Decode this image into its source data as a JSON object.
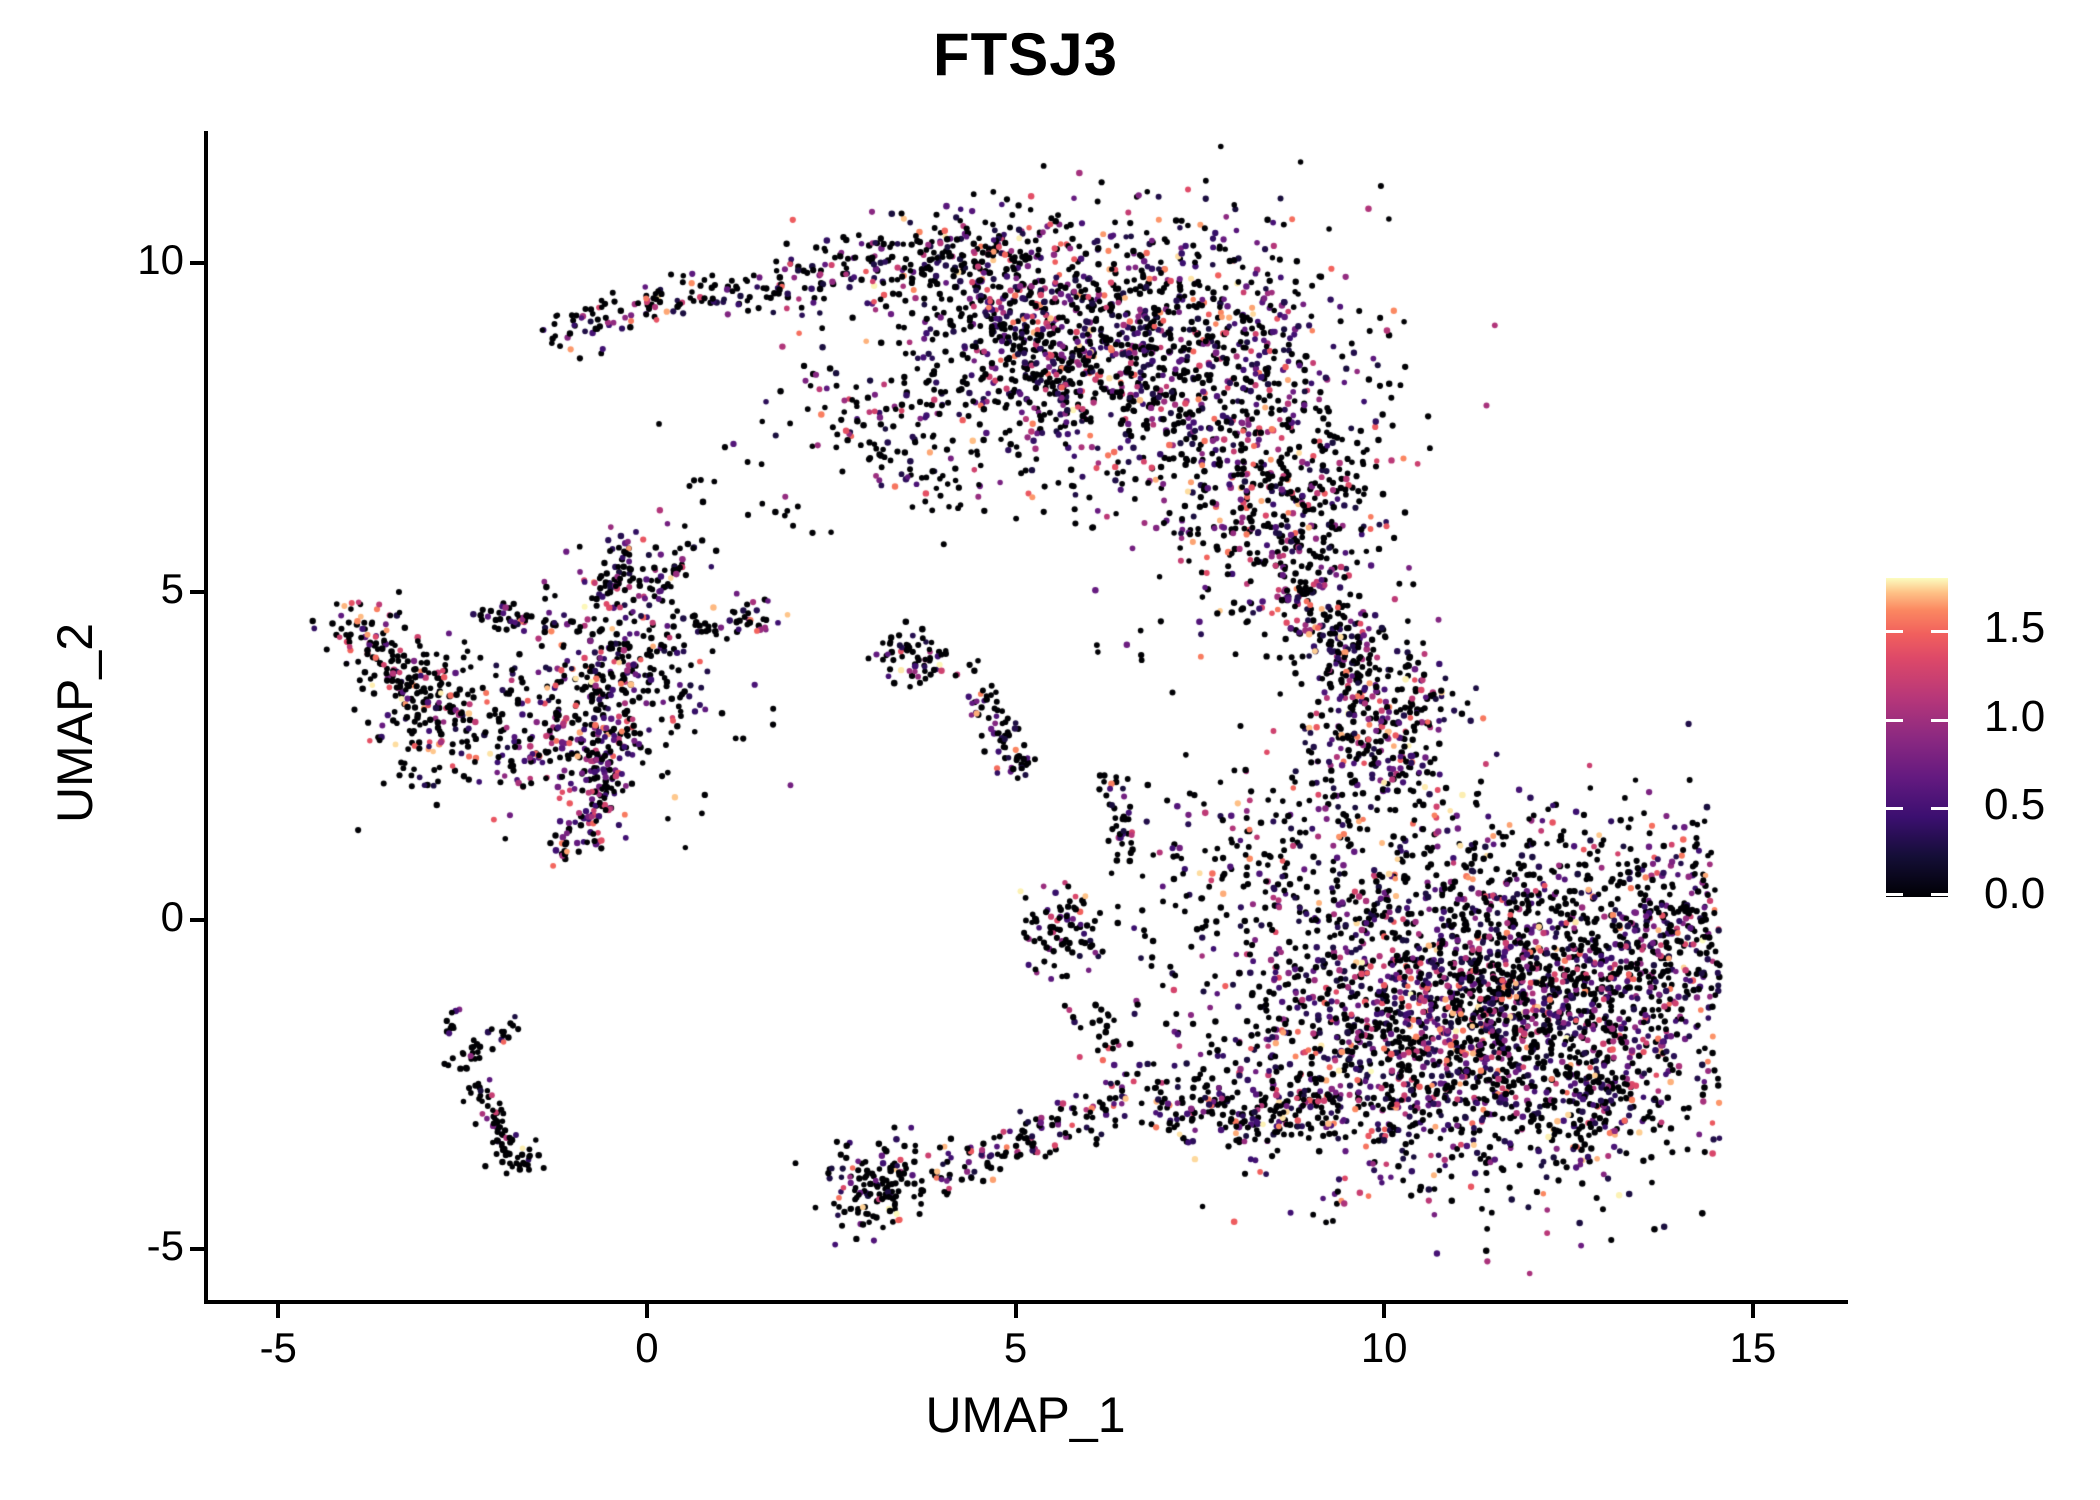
{
  "title": "FTSJ3",
  "chart_data": {
    "type": "scatter",
    "title": "FTSJ3",
    "xlabel": "UMAP_1",
    "ylabel": "UMAP_2",
    "xlim": [
      -5.98,
      16.25
    ],
    "ylim": [
      -5.81,
      11.98
    ],
    "x_ticks": [
      -5,
      0,
      5,
      10,
      15
    ],
    "x_tick_labels": [
      "-5",
      "0",
      "5",
      "10",
      "15"
    ],
    "y_ticks": [
      -5,
      0,
      5,
      10
    ],
    "y_tick_labels": [
      "-5",
      "0",
      "5",
      "10"
    ],
    "grid": false,
    "background": "#ffffff",
    "point_color_zero": "#000004",
    "point_radius_px": 3,
    "seed": 420042,
    "total_points_approx": 8250,
    "colorbar": {
      "position": "right",
      "min": 0.0,
      "max": 1.8,
      "ticks": [
        0.0,
        0.5,
        1.0,
        1.5
      ],
      "tick_labels": [
        "0.0",
        "0.5",
        "1.0",
        "1.5"
      ],
      "colormap_name": "magma",
      "colormap_stops": [
        [
          0.0,
          "#000004"
        ],
        [
          0.125,
          "#140e36"
        ],
        [
          0.25,
          "#3b0f70"
        ],
        [
          0.375,
          "#641a80"
        ],
        [
          0.5,
          "#8c2981"
        ],
        [
          0.625,
          "#b73779"
        ],
        [
          0.75,
          "#de4968"
        ],
        [
          0.825,
          "#f1605d"
        ],
        [
          0.9,
          "#fb8861"
        ],
        [
          0.955,
          "#fec287"
        ],
        [
          1.0,
          "#fcfdbf"
        ]
      ]
    },
    "clusters": [
      {
        "name": "crescent-left-arm",
        "type": "strand",
        "pts": [
          [
            -1.35,
            8.85
          ],
          [
            -0.55,
            9.2
          ],
          [
            0.35,
            9.45
          ],
          [
            1.3,
            9.6
          ],
          [
            2.2,
            9.8
          ]
        ],
        "jitter": 0.17,
        "n": 150,
        "p0": 0.6
      },
      {
        "name": "crescent-top-band",
        "type": "strand",
        "pts": [
          [
            2.2,
            9.8
          ],
          [
            3.2,
            10.0
          ],
          [
            4.3,
            10.15
          ],
          [
            5.3,
            10.1
          ]
        ],
        "jitter": 0.33,
        "n": 240,
        "p0": 0.55
      },
      {
        "name": "crescent-main",
        "type": "blob",
        "cx": 6.8,
        "cy": 8.6,
        "sx": 1.5,
        "sy": 1.12,
        "rot": -12,
        "n": 1250,
        "p0": 0.52
      },
      {
        "name": "crescent-left-lobe",
        "type": "blob",
        "cx": 4.95,
        "cy": 8.85,
        "sx": 0.8,
        "sy": 0.7,
        "rot": 0,
        "n": 280,
        "p0": 0.55
      },
      {
        "name": "crescent-lower-lobe",
        "type": "blob",
        "cx": 8.6,
        "cy": 6.3,
        "sx": 0.72,
        "sy": 0.95,
        "rot": 0,
        "n": 400,
        "p0": 0.53
      },
      {
        "name": "crescent-bay-sparse",
        "type": "blob",
        "cx": 3.4,
        "cy": 7.5,
        "sx": 1.0,
        "sy": 0.8,
        "rot": 0,
        "n": 80,
        "p0": 0.65
      },
      {
        "name": "crescent-bay-strand",
        "type": "strand",
        "pts": [
          [
            2.3,
            8.3
          ],
          [
            2.85,
            7.35
          ],
          [
            3.6,
            6.6
          ],
          [
            4.5,
            6.25
          ]
        ],
        "jitter": 0.16,
        "n": 55,
        "p0": 0.65
      },
      {
        "name": "crescent-neck",
        "type": "strand",
        "pts": [
          [
            8.85,
            5.5
          ],
          [
            9.0,
            4.7
          ],
          [
            9.35,
            3.95
          ]
        ],
        "jitter": 0.33,
        "n": 130,
        "p0": 0.55
      },
      {
        "name": "right-upper-blob",
        "type": "blob",
        "cx": 9.95,
        "cy": 2.9,
        "sx": 0.55,
        "sy": 0.75,
        "rot": 0,
        "n": 320,
        "p0": 0.52
      },
      {
        "name": "right-upper-strand",
        "type": "strand",
        "pts": [
          [
            9.4,
            4.5
          ],
          [
            9.55,
            3.7
          ]
        ],
        "jitter": 0.25,
        "n": 70,
        "p0": 0.55
      },
      {
        "name": "right-bridge-a",
        "type": "blob",
        "cx": 8.9,
        "cy": 1.25,
        "sx": 0.85,
        "sy": 0.85,
        "rot": 0,
        "n": 110,
        "p0": 0.6
      },
      {
        "name": "right-bridge-b",
        "type": "blob",
        "cx": 7.85,
        "cy": 0.5,
        "sx": 0.65,
        "sy": 0.85,
        "rot": 0,
        "n": 90,
        "p0": 0.6
      },
      {
        "name": "right-main-mass",
        "type": "blob",
        "cx": 11.4,
        "cy": -1.35,
        "sx": 1.72,
        "sy": 1.22,
        "rot": 6,
        "n": 2650,
        "p0": 0.52,
        "clipx": 14.55
      },
      {
        "name": "right-east-bulge",
        "type": "blob",
        "cx": 13.85,
        "cy": -0.1,
        "sx": 0.5,
        "sy": 0.7,
        "rot": 0,
        "n": 200,
        "p0": 0.55,
        "clipx": 14.55
      },
      {
        "name": "right-se-tip",
        "type": "strand",
        "pts": [
          [
            13.3,
            -2.4
          ],
          [
            12.85,
            -3.0
          ],
          [
            12.4,
            -3.35
          ]
        ],
        "jitter": 0.28,
        "n": 100,
        "p0": 0.6
      },
      {
        "name": "right-sw-arm",
        "type": "strand",
        "pts": [
          [
            9.3,
            -2.6
          ],
          [
            8.4,
            -2.9
          ],
          [
            7.5,
            -2.85
          ],
          [
            6.75,
            -2.6
          ]
        ],
        "jitter": 0.3,
        "n": 210,
        "p0": 0.58
      },
      {
        "name": "right-top-sparse",
        "type": "blob",
        "cx": 11.3,
        "cy": 1.1,
        "sx": 1.15,
        "sy": 0.55,
        "rot": 0,
        "n": 90,
        "p0": 0.6
      },
      {
        "name": "starburst-core",
        "type": "blob",
        "cx": -0.45,
        "cy": 3.85,
        "sx": 0.55,
        "sy": 0.75,
        "rot": 0,
        "n": 290,
        "p0": 0.58,
        "vexp": 1.4
      },
      {
        "name": "starburst-top-arm",
        "type": "strand",
        "pts": [
          [
            -0.5,
            4.9
          ],
          [
            -0.35,
            5.5
          ],
          [
            -0.3,
            5.95
          ]
        ],
        "jitter": 0.12,
        "n": 45,
        "p0": 0.6
      },
      {
        "name": "starburst-topright-arm",
        "type": "strand",
        "pts": [
          [
            0.05,
            4.9
          ],
          [
            0.4,
            5.4
          ],
          [
            0.62,
            5.72
          ]
        ],
        "jitter": 0.12,
        "n": 40,
        "p0": 0.6
      },
      {
        "name": "starburst-right-arm",
        "type": "strand",
        "pts": [
          [
            0.45,
            4.4
          ],
          [
            1.05,
            4.55
          ],
          [
            1.68,
            4.6
          ]
        ],
        "jitter": 0.14,
        "n": 50,
        "p0": 0.6
      },
      {
        "name": "starburst-left-arm",
        "type": "strand",
        "pts": [
          [
            -1.25,
            4.5
          ],
          [
            -1.8,
            4.6
          ],
          [
            -2.15,
            4.68
          ]
        ],
        "jitter": 0.13,
        "n": 42,
        "p0": 0.6
      },
      {
        "name": "starburst-sw-patch",
        "type": "blob",
        "cx": -1.35,
        "cy": 2.5,
        "sx": 0.45,
        "sy": 0.4,
        "rot": 0,
        "n": 100,
        "p0": 0.38,
        "vbase": 0.45,
        "vspan": 1.3,
        "vexp": 2.2
      },
      {
        "name": "starburst-bottom-strand",
        "type": "strand",
        "pts": [
          [
            -0.42,
            3.0
          ],
          [
            -0.6,
            2.2
          ],
          [
            -0.85,
            1.4
          ],
          [
            -1.0,
            0.95
          ]
        ],
        "jitter": 0.19,
        "n": 140,
        "p0": 0.42,
        "vbase": 0.45,
        "vspan": 1.3,
        "vexp": 2.2
      },
      {
        "name": "starburst-halo",
        "type": "blob",
        "cx": -0.45,
        "cy": 3.4,
        "sx": 1.05,
        "sy": 1.15,
        "rot": 0,
        "n": 90,
        "p0": 0.65
      },
      {
        "name": "farleft-top-clump",
        "type": "blob",
        "cx": -3.85,
        "cy": 4.35,
        "sx": 0.3,
        "sy": 0.28,
        "rot": 0,
        "n": 65,
        "p0": 0.7,
        "vexp": 1.1
      },
      {
        "name": "farleft-main",
        "type": "blob",
        "cx": -2.92,
        "cy": 3.3,
        "sx": 0.42,
        "sy": 0.55,
        "rot": 0,
        "n": 185,
        "p0": 0.7,
        "vexp": 1.1
      },
      {
        "name": "farleft-arm",
        "type": "strand",
        "pts": [
          [
            -3.7,
            3.95
          ],
          [
            -3.25,
            3.6
          ]
        ],
        "jitter": 0.18,
        "n": 38,
        "p0": 0.7,
        "vexp": 1.1
      },
      {
        "name": "farleft-east-sparse",
        "type": "blob",
        "cx": -2.2,
        "cy": 3.25,
        "sx": 0.3,
        "sy": 0.42,
        "rot": 0,
        "n": 28,
        "p0": 0.75,
        "vexp": 1.1
      },
      {
        "name": "mid-hand",
        "type": "blob",
        "cx": 3.75,
        "cy": 3.95,
        "sx": 0.3,
        "sy": 0.2,
        "rot": -18,
        "n": 58,
        "p0": 0.68
      },
      {
        "name": "mid-hand-tip",
        "type": "strand",
        "pts": [
          [
            3.28,
            4.22
          ],
          [
            3.5,
            4.08
          ]
        ],
        "jitter": 0.07,
        "n": 10,
        "p0": 0.7
      },
      {
        "name": "mid-diag-strand",
        "type": "strand",
        "pts": [
          [
            4.5,
            3.5
          ],
          [
            4.75,
            3.0
          ],
          [
            4.95,
            2.5
          ],
          [
            5.05,
            2.15
          ]
        ],
        "jitter": 0.12,
        "n": 70,
        "p0": 0.62
      },
      {
        "name": "mid-vert-strand",
        "type": "strand",
        "pts": [
          [
            6.3,
            2.25
          ],
          [
            6.42,
            1.6
          ],
          [
            6.48,
            1.0
          ]
        ],
        "jitter": 0.1,
        "n": 38,
        "p0": 0.68
      },
      {
        "name": "mid-small-blob",
        "type": "blob",
        "cx": 5.6,
        "cy": -0.15,
        "sx": 0.3,
        "sy": 0.35,
        "rot": 0,
        "n": 85,
        "p0": 0.6
      },
      {
        "name": "mid-below-sparse",
        "type": "strand",
        "pts": [
          [
            5.95,
            -1.15
          ],
          [
            6.2,
            -1.8
          ],
          [
            6.5,
            -2.35
          ]
        ],
        "jitter": 0.15,
        "n": 26,
        "p0": 0.7
      },
      {
        "name": "bottom-mid-blob",
        "type": "blob",
        "cx": 3.15,
        "cy": -4.0,
        "sx": 0.4,
        "sy": 0.32,
        "rot": 28,
        "n": 145,
        "p0": 0.72
      },
      {
        "name": "bottom-mid-strand",
        "type": "strand",
        "pts": [
          [
            3.8,
            -3.82
          ],
          [
            4.5,
            -3.72
          ],
          [
            5.2,
            -3.3
          ],
          [
            5.9,
            -3.0
          ],
          [
            6.5,
            -2.7
          ]
        ],
        "jitter": 0.2,
        "n": 135,
        "p0": 0.55
      },
      {
        "name": "bl-strand-top",
        "type": "strand",
        "pts": [
          [
            -2.63,
            -1.35
          ],
          [
            -2.63,
            -1.8
          ]
        ],
        "jitter": 0.06,
        "n": 10,
        "p0": 0.85
      },
      {
        "name": "bl-strand-main",
        "type": "strand",
        "pts": [
          [
            -2.6,
            -2.0
          ],
          [
            -2.35,
            -2.55
          ],
          [
            -2.05,
            -3.1
          ],
          [
            -1.86,
            -3.5
          ]
        ],
        "jitter": 0.1,
        "n": 65,
        "p0": 0.85
      },
      {
        "name": "bl-strand-branch",
        "type": "strand",
        "pts": [
          [
            -2.45,
            -2.02
          ],
          [
            -2.1,
            -1.78
          ],
          [
            -1.68,
            -1.45
          ]
        ],
        "jitter": 0.09,
        "n": 22,
        "p0": 0.8
      },
      {
        "name": "bl-strand-foot",
        "type": "blob",
        "cx": -1.7,
        "cy": -3.62,
        "sx": 0.17,
        "sy": 0.16,
        "rot": 0,
        "n": 24,
        "p0": 0.85
      },
      {
        "name": "bridge-nw",
        "type": "blob",
        "cx": 0.9,
        "cy": 6.3,
        "sx": 0.55,
        "sy": 0.5,
        "rot": 0,
        "n": 12,
        "p0": 0.7
      },
      {
        "name": "bridge-mid",
        "type": "blob",
        "cx": 6.5,
        "cy": 4.45,
        "sx": 0.5,
        "sy": 0.3,
        "rot": 0,
        "n": 8,
        "p0": 0.7
      },
      {
        "name": "bridge-ne",
        "type": "blob",
        "cx": 2.0,
        "cy": 5.85,
        "sx": 0.3,
        "sy": 0.2,
        "rot": 0,
        "n": 6,
        "p0": 0.7
      }
    ]
  }
}
